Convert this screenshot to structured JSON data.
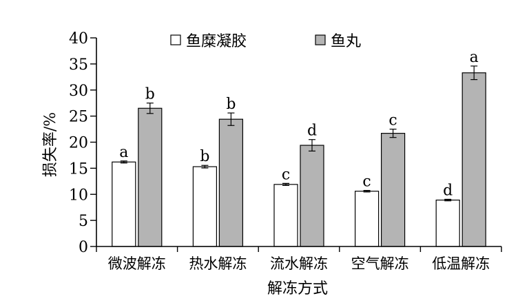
{
  "chart_data": {
    "type": "bar",
    "title": "",
    "xlabel": "解冻方式",
    "ylabel": "损失率/%",
    "ylim": [
      0,
      40
    ],
    "yticks": [
      0,
      5,
      10,
      15,
      20,
      25,
      30,
      35,
      40
    ],
    "categories": [
      "微波解冻",
      "热水解冻",
      "流水解冻",
      "空气解冻",
      "低温解冻"
    ],
    "legend_position": "top",
    "series": [
      {
        "name": "鱼糜凝胶",
        "color": "#ffffff",
        "values": [
          16.2,
          15.3,
          11.9,
          10.6,
          8.9
        ],
        "errors": [
          0.2,
          0.25,
          0.2,
          0.15,
          0.15
        ],
        "labels": [
          "a",
          "b",
          "c",
          "c",
          "d"
        ]
      },
      {
        "name": "鱼丸",
        "color": "#b4b4b4",
        "values": [
          26.5,
          24.4,
          19.4,
          21.7,
          33.3
        ],
        "errors": [
          1.0,
          1.2,
          1.1,
          0.8,
          1.3
        ],
        "labels": [
          "b",
          "b",
          "d",
          "c",
          "a"
        ]
      }
    ]
  }
}
